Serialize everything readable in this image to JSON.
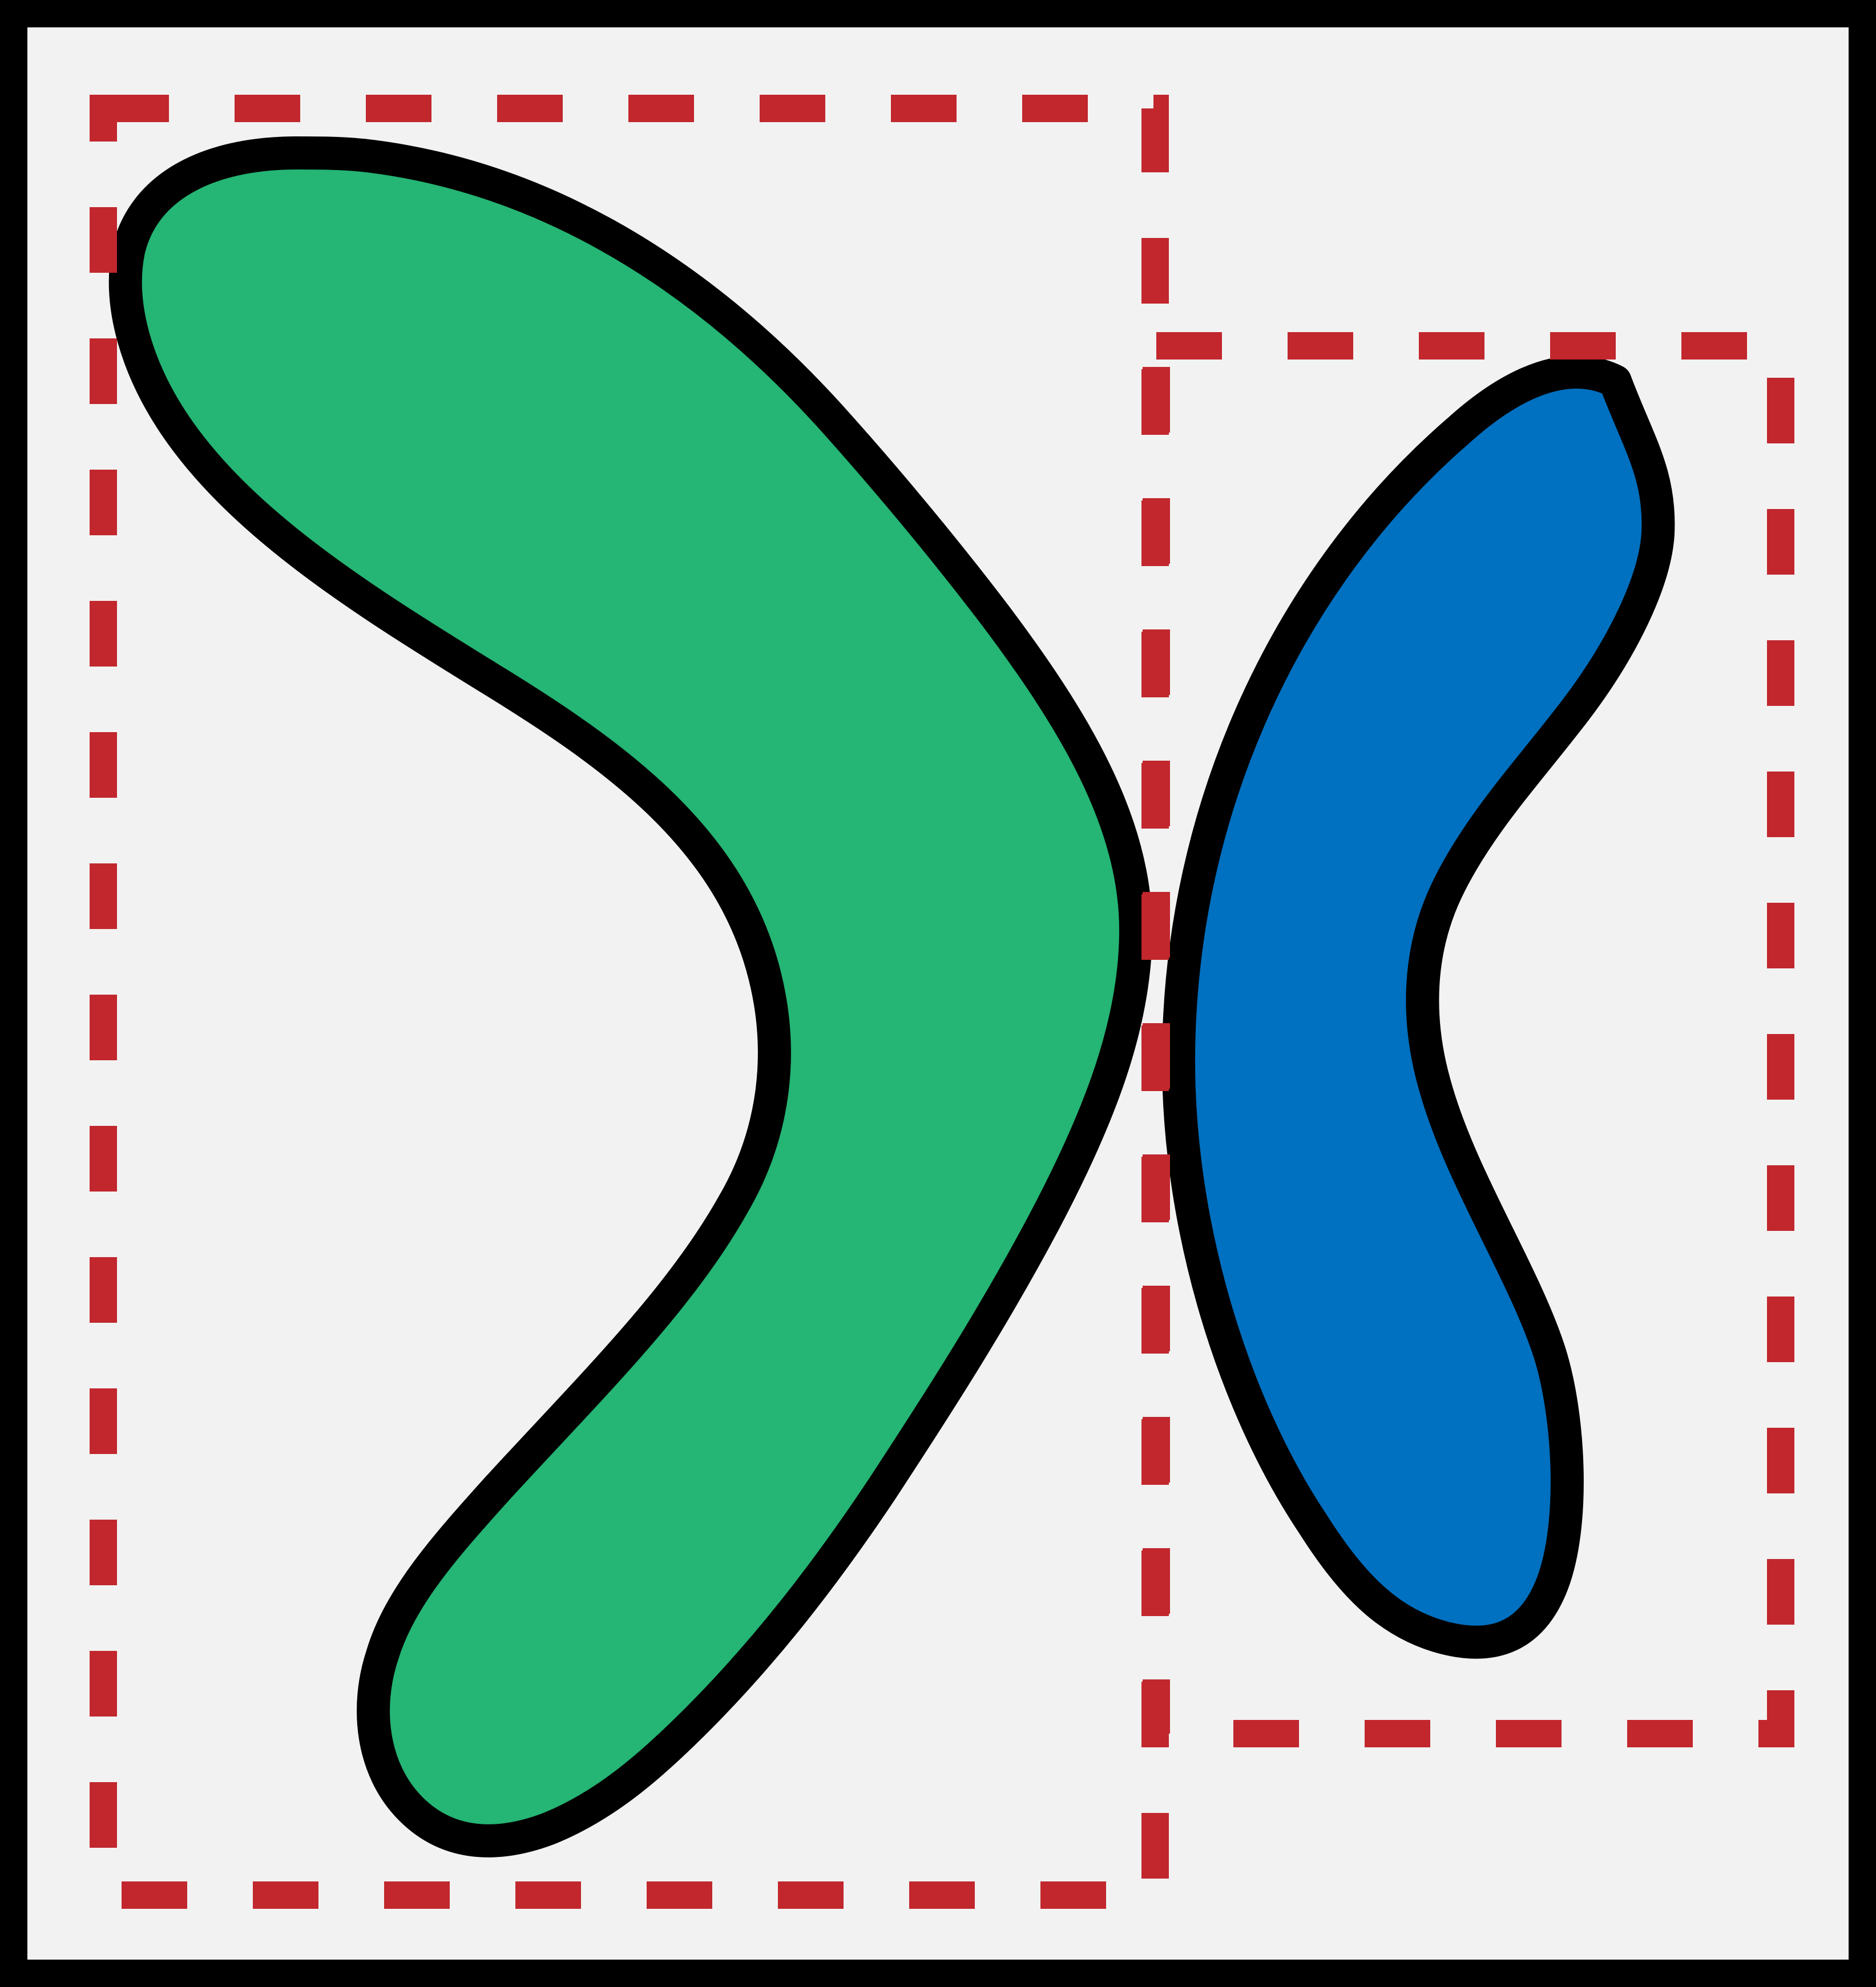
{
  "diagram": {
    "background_color": "#f2f2f2",
    "frame_color": "#000000",
    "bounding_box_color": "#c1272d",
    "shapes": [
      {
        "id": "green-boomerang",
        "fill": "#25b574"
      },
      {
        "id": "blue-crescent",
        "fill": "#0070c0"
      }
    ]
  }
}
